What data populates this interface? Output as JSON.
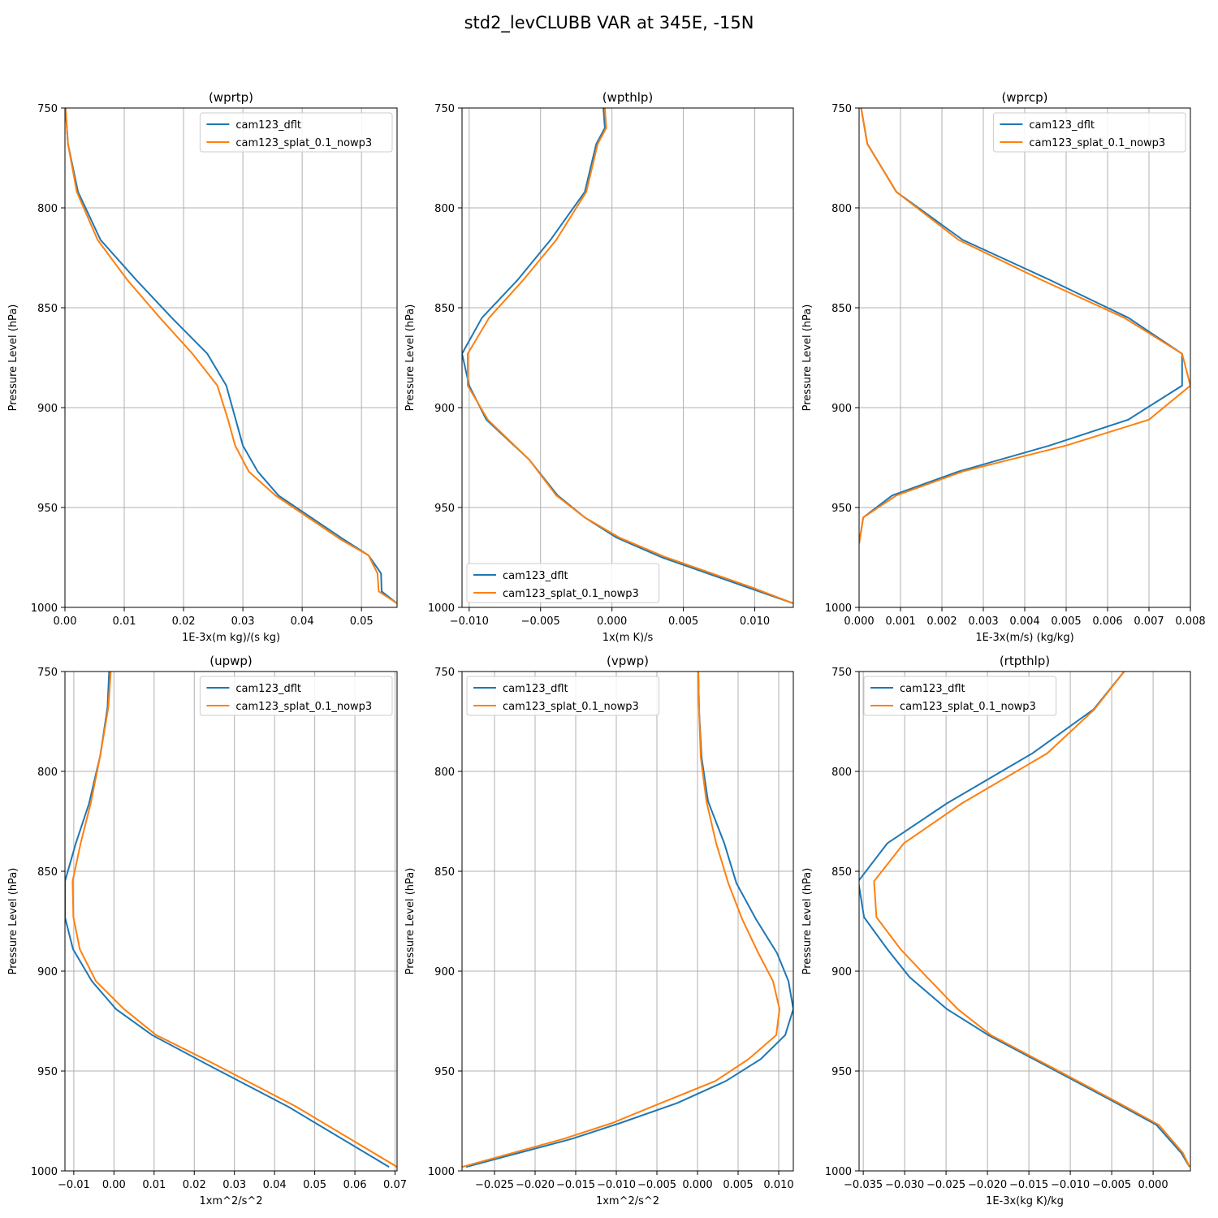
{
  "figure": {
    "title": "std2_levCLUBB VAR at 345E, -15N"
  },
  "colors": {
    "dflt": "#1f77b4",
    "splat": "#ff7f0e",
    "grid": "#b0b0b0"
  },
  "chart_data": [
    {
      "type": "line",
      "title": "(wprtp)",
      "xlabel": "1E-3x(m kg)/(s kg)",
      "ylabel": "Pressure Level (hPa)",
      "xlim": [
        0,
        0.056
      ],
      "ylim": [
        1000,
        750
      ],
      "y_inverted": true,
      "grid": true,
      "legend": "top-right",
      "xticks": [
        0,
        0.01,
        0.02,
        0.03,
        0.04,
        0.05
      ],
      "xticklabels": [
        "0.00",
        "0.01",
        "0.02",
        "0.03",
        "0.04",
        "0.05"
      ],
      "yticks": [
        750,
        800,
        850,
        900,
        950,
        1000
      ],
      "yticklabels": [
        "750",
        "800",
        "850",
        "900",
        "950",
        "1000"
      ],
      "series": [
        {
          "name": "cam123_dflt",
          "color": "#1f77b4",
          "x": [
            0.0001,
            0.0005,
            0.0022,
            0.006,
            0.012,
            0.018,
            0.024,
            0.0272,
            0.0288,
            0.03,
            0.0325,
            0.036,
            0.047,
            0.0512,
            0.0533,
            0.0534,
            0.056
          ],
          "y": [
            750,
            768,
            792,
            816,
            836,
            855,
            873,
            889,
            906,
            919,
            932,
            944,
            966,
            974,
            983,
            992,
            998
          ]
        },
        {
          "name": "cam123_splat_0.1_nowp3",
          "color": "#ff7f0e",
          "x": [
            0.0001,
            0.0005,
            0.002,
            0.0055,
            0.0105,
            0.016,
            0.0215,
            0.0257,
            0.0275,
            0.0287,
            0.031,
            0.0355,
            0.0465,
            0.0512,
            0.0527,
            0.0529,
            0.056
          ],
          "y": [
            750,
            768,
            792,
            816,
            836,
            855,
            873,
            889,
            906,
            919,
            932,
            944,
            966,
            974,
            983,
            992,
            998
          ]
        }
      ]
    },
    {
      "type": "line",
      "title": "(wpthlp)",
      "xlabel": "1x(m K)/s",
      "ylabel": "Pressure Level (hPa)",
      "xlim": [
        -0.0105,
        0.0127
      ],
      "ylim": [
        1000,
        750
      ],
      "y_inverted": true,
      "grid": true,
      "legend": "bottom-left",
      "xticks": [
        -0.01,
        -0.005,
        0,
        0.005,
        0.01
      ],
      "xticklabels": [
        "−0.010",
        "−0.005",
        "0.000",
        "0.005",
        "0.010"
      ],
      "yticks": [
        750,
        800,
        850,
        900,
        950,
        1000
      ],
      "yticklabels": [
        "750",
        "800",
        "850",
        "900",
        "950",
        "1000"
      ],
      "series": [
        {
          "name": "cam123_dflt",
          "color": "#1f77b4",
          "x": [
            -0.0006,
            -0.0005,
            -0.0011,
            -0.0019,
            -0.0043,
            -0.0066,
            -0.0091,
            -0.0105,
            -0.01,
            -0.0088,
            -0.0058,
            -0.0038,
            -0.0019,
            0.0003,
            0.0035,
            0.0095,
            0.0127
          ],
          "y": [
            750,
            760,
            768,
            792,
            816,
            836,
            855,
            873,
            889,
            906,
            926,
            944,
            955,
            965,
            975,
            990,
            998
          ]
        },
        {
          "name": "cam123_splat_0.1_nowp3",
          "color": "#ff7f0e",
          "x": [
            -0.0005,
            -0.0004,
            -0.001,
            -0.0018,
            -0.0039,
            -0.0062,
            -0.0086,
            -0.0101,
            -0.0101,
            -0.0087,
            -0.0058,
            -0.0039,
            -0.0019,
            0.0005,
            0.0038,
            0.0098,
            0.0127
          ],
          "y": [
            750,
            760,
            768,
            792,
            816,
            836,
            855,
            873,
            889,
            906,
            926,
            944,
            955,
            965,
            975,
            990,
            998
          ]
        }
      ]
    },
    {
      "type": "line",
      "title": "(wprcp)",
      "xlabel": "1E-3x(m/s) (kg/kg)",
      "ylabel": "Pressure Level (hPa)",
      "xlim": [
        0,
        0.008
      ],
      "ylim": [
        1000,
        750
      ],
      "y_inverted": true,
      "grid": true,
      "legend": "top-right",
      "xticks": [
        0,
        0.001,
        0.002,
        0.003,
        0.004,
        0.005,
        0.006,
        0.007,
        0.008
      ],
      "xticklabels": [
        "0.000",
        "0.001",
        "0.002",
        "0.003",
        "0.004",
        "0.005",
        "0.006",
        "0.007",
        "0.008"
      ],
      "yticks": [
        750,
        800,
        850,
        900,
        950,
        1000
      ],
      "yticklabels": [
        "750",
        "800",
        "850",
        "900",
        "950",
        "1000"
      ],
      "series": [
        {
          "name": "cam123_dflt",
          "color": "#1f77b4",
          "x": [
            5e-05,
            0.0002,
            0.0009,
            0.0025,
            0.0046,
            0.0065,
            0.0078,
            0.0078,
            0.0065,
            0.0046,
            0.0024,
            0.0008,
            0.0001,
            0.0
          ],
          "y": [
            750,
            768,
            792,
            816,
            836,
            855,
            873,
            889,
            906,
            919,
            932,
            944,
            955,
            968
          ]
        },
        {
          "name": "cam123_splat_0.1_nowp3",
          "color": "#ff7f0e",
          "x": [
            5e-05,
            0.0002,
            0.0009,
            0.0024,
            0.0044,
            0.0064,
            0.0078,
            0.008,
            0.007,
            0.005,
            0.0025,
            0.0009,
            0.0001,
            0.0
          ],
          "y": [
            750,
            768,
            792,
            816,
            836,
            855,
            873,
            889,
            906,
            919,
            932,
            944,
            955,
            968
          ]
        }
      ]
    },
    {
      "type": "line",
      "title": "(upwp)",
      "xlabel": "1xm^2/s^2",
      "ylabel": "Pressure Level (hPa)",
      "xlim": [
        -0.0122,
        0.0705
      ],
      "ylim": [
        1000,
        750
      ],
      "y_inverted": true,
      "grid": true,
      "legend": "top-right",
      "xticks": [
        -0.01,
        0,
        0.01,
        0.02,
        0.03,
        0.04,
        0.05,
        0.06,
        0.07
      ],
      "xticklabels": [
        "−0.01",
        "0.00",
        "0.01",
        "0.02",
        "0.03",
        "0.04",
        "0.05",
        "0.06",
        "0.07"
      ],
      "yticks": [
        750,
        800,
        850,
        900,
        950,
        1000
      ],
      "yticklabels": [
        "750",
        "800",
        "850",
        "900",
        "950",
        "1000"
      ],
      "series": [
        {
          "name": "cam123_dflt",
          "color": "#1f77b4",
          "x": [
            -0.0012,
            -0.0016,
            -0.0034,
            -0.0062,
            -0.0095,
            -0.0122,
            -0.0122,
            -0.0102,
            -0.0055,
            0.0005,
            0.0095,
            0.0235,
            0.0435,
            0.0685
          ],
          "y": [
            750,
            768,
            792,
            816,
            836,
            855,
            873,
            889,
            905,
            919,
            932,
            947,
            968,
            998
          ]
        },
        {
          "name": "cam123_splat_0.1_nowp3",
          "color": "#ff7f0e",
          "x": [
            -0.0008,
            -0.0014,
            -0.0034,
            -0.0058,
            -0.0083,
            -0.0103,
            -0.0101,
            -0.0085,
            -0.0045,
            0.0025,
            0.0105,
            0.0255,
            0.0455,
            0.0705
          ],
          "y": [
            750,
            768,
            792,
            816,
            836,
            855,
            873,
            889,
            905,
            919,
            932,
            947,
            968,
            998
          ]
        }
      ]
    },
    {
      "type": "line",
      "title": "(vpwp)",
      "xlabel": "1xm^2/s^2",
      "ylabel": "Pressure Level (hPa)",
      "xlim": [
        -0.029,
        0.0118
      ],
      "ylim": [
        1000,
        750
      ],
      "y_inverted": true,
      "grid": true,
      "legend": "top-left",
      "xticks": [
        -0.025,
        -0.02,
        -0.015,
        -0.01,
        -0.005,
        0,
        0.005,
        0.01
      ],
      "xticklabels": [
        "−0.025",
        "−0.020",
        "−0.015",
        "−0.010",
        "−0.005",
        "0.000",
        "0.005",
        "0.010"
      ],
      "yticks": [
        750,
        800,
        850,
        900,
        950,
        1000
      ],
      "yticklabels": [
        "750",
        "800",
        "850",
        "900",
        "950",
        "1000"
      ],
      "series": [
        {
          "name": "cam123_dflt",
          "color": "#1f77b4",
          "x": [
            0.0001,
            0.0002,
            0.0005,
            0.0013,
            0.0033,
            0.0048,
            0.0072,
            0.0098,
            0.0112,
            0.0118,
            0.0108,
            0.0078,
            0.0035,
            -0.0025,
            -0.0095,
            -0.0155,
            -0.0285
          ],
          "y": [
            750,
            770,
            793,
            815,
            836,
            856,
            874,
            891,
            905,
            919,
            932,
            944,
            955,
            966,
            976,
            984,
            998
          ]
        },
        {
          "name": "cam123_splat_0.1_nowp3",
          "color": "#ff7f0e",
          "x": [
            0.0001,
            0.0002,
            0.0004,
            0.0011,
            0.0023,
            0.0038,
            0.0055,
            0.0075,
            0.0093,
            0.0101,
            0.0097,
            0.0063,
            0.0022,
            -0.0045,
            -0.0105,
            -0.0165,
            -0.029
          ],
          "y": [
            750,
            770,
            793,
            815,
            836,
            856,
            874,
            891,
            905,
            919,
            932,
            944,
            955,
            966,
            976,
            984,
            998
          ]
        }
      ]
    },
    {
      "type": "line",
      "title": "(rtpthlp)",
      "xlabel": "1E-3x(kg K)/kg",
      "ylabel": "Pressure Level (hPa)",
      "xlim": [
        -0.0355,
        0.0045
      ],
      "ylim": [
        1000,
        750
      ],
      "y_inverted": true,
      "grid": true,
      "legend": "top-left",
      "xticks": [
        -0.035,
        -0.03,
        -0.025,
        -0.02,
        -0.015,
        -0.01,
        -0.005,
        0
      ],
      "xticklabels": [
        "−0.035",
        "−0.030",
        "−0.025",
        "−0.020",
        "−0.015",
        "−0.010",
        "−0.005",
        "0.000"
      ],
      "yticks": [
        750,
        800,
        850,
        900,
        950,
        1000
      ],
      "yticklabels": [
        "750",
        "800",
        "850",
        "900",
        "950",
        "1000"
      ],
      "series": [
        {
          "name": "cam123_dflt",
          "color": "#1f77b4",
          "x": [
            -0.0035,
            -0.0072,
            -0.0146,
            -0.0249,
            -0.0321,
            -0.0356,
            -0.0349,
            -0.0321,
            -0.0294,
            -0.0249,
            -0.0199,
            -0.0149,
            -0.0099,
            -0.0049,
            0.0004,
            0.0034,
            0.0044
          ],
          "y": [
            750,
            769,
            791,
            816,
            836,
            855,
            873,
            889,
            903,
            919,
            932,
            943,
            954,
            965,
            977,
            991,
            998
          ]
        },
        {
          "name": "cam123_splat_0.1_nowp3",
          "color": "#ff7f0e",
          "x": [
            -0.0035,
            -0.0071,
            -0.0128,
            -0.0231,
            -0.0301,
            -0.0337,
            -0.0334,
            -0.0305,
            -0.0273,
            -0.0236,
            -0.0196,
            -0.0146,
            -0.0096,
            -0.0046,
            0.0007,
            0.0036,
            0.0044
          ],
          "y": [
            750,
            769,
            791,
            816,
            836,
            855,
            873,
            889,
            903,
            919,
            932,
            943,
            954,
            965,
            977,
            991,
            998
          ]
        }
      ]
    }
  ]
}
